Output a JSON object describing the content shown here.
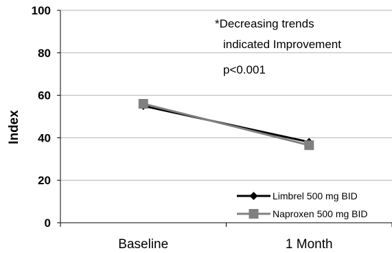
{
  "chart_data": {
    "type": "line",
    "categories": [
      "Baseline",
      "1 Month"
    ],
    "series": [
      {
        "name": "Limbrel 500 mg BID",
        "values": [
          55,
          38
        ],
        "color": "#000000",
        "marker": "diamond"
      },
      {
        "name": "Naproxen 500 mg BID",
        "values": [
          56,
          36.5
        ],
        "color": "#808080",
        "marker": "square"
      }
    ],
    "title": "",
    "xlabel": "",
    "ylabel": "Index",
    "ylim": [
      0,
      100
    ],
    "yticks": [
      0,
      20,
      40,
      60,
      80,
      100
    ],
    "grid": true,
    "legend_position": "bottom-right",
    "annotations": [
      "*Decreasing trends",
      "indicated Improvement",
      "p<0.001"
    ]
  }
}
